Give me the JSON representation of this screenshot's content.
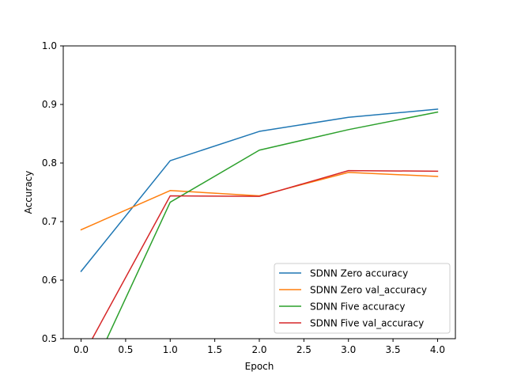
{
  "chart_data": {
    "type": "line",
    "title": "",
    "xlabel": "Epoch",
    "ylabel": "Accuracy",
    "xlim": [
      -0.2,
      4.2
    ],
    "ylim": [
      0.5,
      1.0
    ],
    "x_ticks": [
      0.0,
      0.5,
      1.0,
      1.5,
      2.0,
      2.5,
      3.0,
      3.5,
      4.0
    ],
    "x_tick_labels": [
      "0.0",
      "0.5",
      "1.0",
      "1.5",
      "2.0",
      "2.5",
      "3.0",
      "3.5",
      "4.0"
    ],
    "y_ticks": [
      0.5,
      0.6,
      0.7,
      0.8,
      0.9,
      1.0
    ],
    "y_tick_labels": [
      "0.5",
      "0.6",
      "0.7",
      "0.8",
      "0.9",
      "1.0"
    ],
    "grid": false,
    "legend_position": "bottom-right",
    "x": [
      0,
      1,
      2,
      3,
      4
    ],
    "series": [
      {
        "name": "SDNN Zero accuracy",
        "color": "#1f77b4",
        "values": [
          0.615,
          0.804,
          0.854,
          0.878,
          0.892
        ]
      },
      {
        "name": "SDNN Zero val_accuracy",
        "color": "#ff7f0e",
        "values": [
          0.686,
          0.753,
          0.744,
          0.784,
          0.777
        ]
      },
      {
        "name": "SDNN Five accuracy",
        "color": "#2ca02c",
        "values": [
          0.405,
          0.733,
          0.822,
          0.857,
          0.887
        ]
      },
      {
        "name": "SDNN Five val_accuracy",
        "color": "#d62728",
        "values": [
          0.465,
          0.744,
          0.743,
          0.787,
          0.786
        ]
      }
    ]
  }
}
